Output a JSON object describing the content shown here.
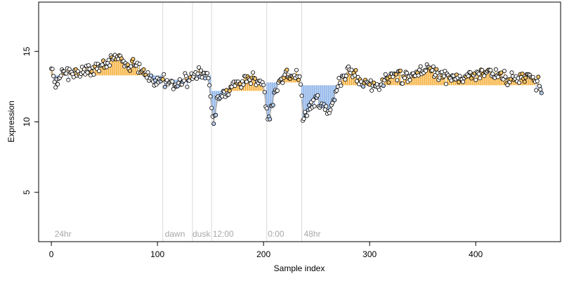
{
  "chart_data": {
    "type": "scatter",
    "xlabel": "Sample index",
    "ylabel": "Expression",
    "xlim": [
      -12,
      480
    ],
    "ylim": [
      1.5,
      18.5
    ],
    "x_ticks": [
      0,
      100,
      200,
      300,
      400
    ],
    "y_ticks": [
      5,
      10,
      15
    ],
    "grid": false,
    "legend": "none",
    "colors": {
      "above_baseline": "#f5a623",
      "below_baseline": "#7aa7e6",
      "trend": "#aaaaaa",
      "marker_fill_default": "#ffffff",
      "marker_fill_above": "#f7c56b",
      "marker_fill_below": "#b9cff0",
      "divider": "#d9d9d9",
      "annotation": "#a8a8a8"
    },
    "annotations": [
      {
        "label": "24hr",
        "x": 3
      },
      {
        "label": "dawn",
        "x": 107
      },
      {
        "label": "dusk",
        "x": 133
      },
      {
        "label": "12:00",
        "x": 152
      },
      {
        "label": "0:00",
        "x": 204
      },
      {
        "label": "48hr",
        "x": 238
      }
    ],
    "dividers": [
      105,
      133,
      151,
      203,
      236
    ],
    "segments": [
      {
        "x0": 0,
        "x1": 105,
        "baseline": 13.3
      },
      {
        "x0": 105,
        "x1": 133,
        "baseline": 13.0
      },
      {
        "x0": 133,
        "x1": 151,
        "baseline": 13.3
      },
      {
        "x0": 151,
        "x1": 203,
        "baseline": 12.2
      },
      {
        "x0": 203,
        "x1": 236,
        "baseline": 12.8
      },
      {
        "x0": 236,
        "x1": 465,
        "baseline": 12.6
      }
    ],
    "anchors": [
      [
        0,
        13.6
      ],
      [
        4,
        12.6
      ],
      [
        10,
        13.5
      ],
      [
        20,
        13.5
      ],
      [
        30,
        13.6
      ],
      [
        40,
        13.8
      ],
      [
        50,
        14.0
      ],
      [
        58,
        14.6
      ],
      [
        65,
        14.6
      ],
      [
        72,
        14.0
      ],
      [
        80,
        13.9
      ],
      [
        88,
        13.5
      ],
      [
        95,
        12.9
      ],
      [
        100,
        12.9
      ],
      [
        105,
        13.0
      ],
      [
        112,
        12.8
      ],
      [
        120,
        12.6
      ],
      [
        128,
        13.0
      ],
      [
        133,
        13.3
      ],
      [
        140,
        13.4
      ],
      [
        148,
        13.3
      ],
      [
        151,
        11.0
      ],
      [
        153,
        10.0
      ],
      [
        157,
        11.8
      ],
      [
        163,
        12.0
      ],
      [
        170,
        12.6
      ],
      [
        180,
        12.8
      ],
      [
        190,
        13.0
      ],
      [
        200,
        12.8
      ],
      [
        203,
        10.6
      ],
      [
        205,
        10.2
      ],
      [
        210,
        12.0
      ],
      [
        216,
        13.2
      ],
      [
        222,
        13.5
      ],
      [
        228,
        13.3
      ],
      [
        235,
        13.0
      ],
      [
        237,
        10.2
      ],
      [
        243,
        11.0
      ],
      [
        250,
        11.7
      ],
      [
        258,
        11.0
      ],
      [
        262,
        10.6
      ],
      [
        268,
        12.3
      ],
      [
        275,
        13.2
      ],
      [
        282,
        13.8
      ],
      [
        290,
        13.0
      ],
      [
        300,
        12.7
      ],
      [
        308,
        12.3
      ],
      [
        315,
        13.3
      ],
      [
        325,
        13.3
      ],
      [
        335,
        13.3
      ],
      [
        345,
        13.5
      ],
      [
        355,
        13.8
      ],
      [
        362,
        13.6
      ],
      [
        370,
        13.3
      ],
      [
        380,
        13.1
      ],
      [
        390,
        13.1
      ],
      [
        400,
        13.3
      ],
      [
        410,
        13.5
      ],
      [
        418,
        13.4
      ],
      [
        428,
        13.0
      ],
      [
        438,
        13.1
      ],
      [
        448,
        13.2
      ],
      [
        455,
        12.9
      ],
      [
        462,
        12.4
      ]
    ]
  }
}
